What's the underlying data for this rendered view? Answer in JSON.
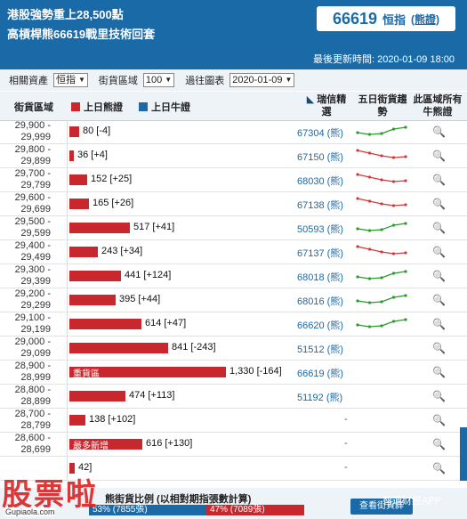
{
  "header": {
    "headline_1": "港股強勢重上28,500點",
    "headline_2": "高槓桿熊66619戰里技術回套",
    "index_value": "66619",
    "index_name": "恒指",
    "index_note": "(熊證)",
    "updated": "最後更新時間: 2020-01-09 18:00"
  },
  "filters": {
    "asset_label": "相關資產",
    "asset_value": "恒指",
    "zone_label": "街貨區域",
    "zone_value": "100",
    "week_label": "過往圖表",
    "week_value": "2020-01-09"
  },
  "table_header": {
    "range": "街貨區域",
    "bear": "上日熊證",
    "bull": "上日牛證",
    "pick": "瑞信精選",
    "trend": "五日街貨趨勢",
    "all": "此區域所有牛熊證"
  },
  "colors": {
    "bear": "#c8272e",
    "bull": "#1a6aa8",
    "up": "#2a9a2a",
    "down": "#d23a3a"
  },
  "rows": [
    {
      "range": "29,900 - 29,999",
      "value": 80,
      "label": "80 [-4]",
      "cbbc": "67304 (熊)",
      "trend": "up"
    },
    {
      "range": "29,800 - 29,899",
      "value": 36,
      "label": "36 [+4]",
      "cbbc": "67150 (熊)",
      "trend": "down"
    },
    {
      "range": "29,700 - 29,799",
      "value": 152,
      "label": "152 [+25]",
      "cbbc": "68030 (熊)",
      "trend": "down"
    },
    {
      "range": "29,600 - 29,699",
      "value": 165,
      "label": "165 [+26]",
      "cbbc": "67138 (熊)",
      "trend": "down"
    },
    {
      "range": "29,500 - 29,599",
      "value": 517,
      "label": "517 [+41]",
      "cbbc": "50593 (熊)",
      "trend": "up"
    },
    {
      "range": "29,400 - 29,499",
      "value": 243,
      "label": "243 [+34]",
      "cbbc": "67137 (熊)",
      "trend": "down"
    },
    {
      "range": "29,300 - 29,399",
      "value": 441,
      "label": "441 [+124]",
      "cbbc": "68018 (熊)",
      "trend": "up"
    },
    {
      "range": "29,200 - 29,299",
      "value": 395,
      "label": "395 [+44]",
      "cbbc": "68016 (熊)",
      "trend": "up"
    },
    {
      "range": "29,100 - 29,199",
      "value": 614,
      "label": "614 [+47]",
      "cbbc": "66620 (熊)",
      "trend": "up"
    },
    {
      "range": "29,000 - 29,099",
      "value": 841,
      "label": "841 [-243]",
      "cbbc": "51512 (熊)",
      "trend": "none"
    },
    {
      "range": "28,900 - 28,999",
      "value": 1330,
      "label": "1,330 [-164]",
      "cbbc": "66619 (熊)",
      "trend": "none",
      "tag": "重貨區"
    },
    {
      "range": "28,800 - 28,899",
      "value": 474,
      "label": "474 [+113]",
      "cbbc": "51192 (熊)",
      "trend": "none"
    },
    {
      "range": "28,700 - 28,799",
      "value": 138,
      "label": "138 [+102]",
      "cbbc": "-",
      "trend": "none"
    },
    {
      "range": "28,600 - 28,699",
      "value": 616,
      "label": "616 [+130]",
      "cbbc": "-",
      "trend": "none",
      "tag": "最多新增"
    },
    {
      "range": "",
      "value": 42,
      "label": "42]",
      "cbbc": "-",
      "trend": "none"
    }
  ],
  "bottom": {
    "title": "熊街貨比例 (以相對期指張數計算)",
    "bull_seg": "53% (7855張)",
    "bear_seg": "47% (7089張)",
    "button": "查看街貨詳",
    "brand": "智通财经APP"
  },
  "watermark": {
    "logo": "股票啦",
    "url": "Gupiaola.com"
  }
}
